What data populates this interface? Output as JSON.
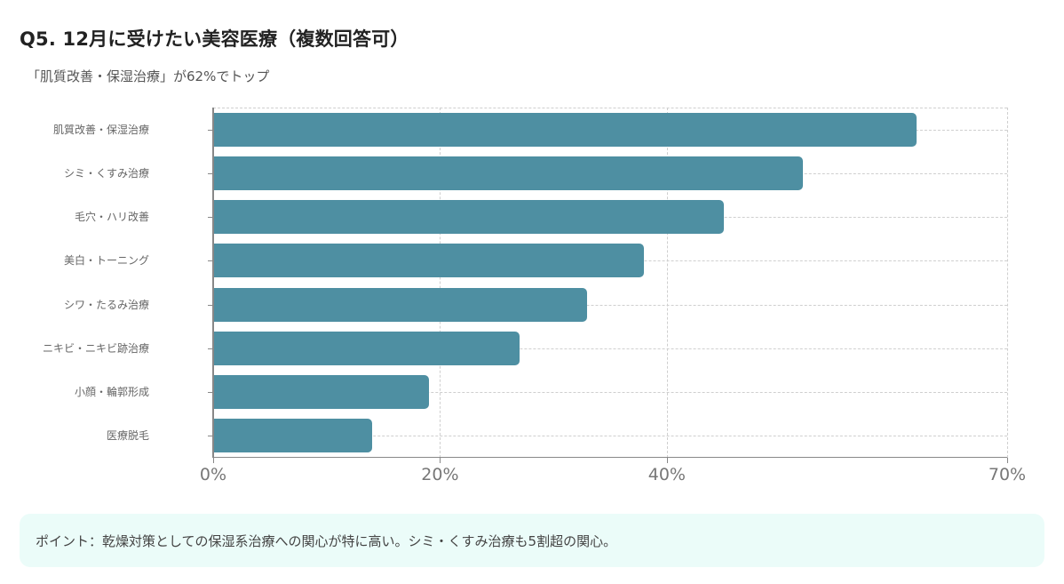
{
  "header": {
    "title": "Q5. 12月に受けたい美容医療（複数回答可）",
    "subtitle": "「肌質改善・保湿治療」が62%でトップ"
  },
  "note": {
    "text": "ポイント：乾燥対策としての保湿系治療への関心が特に高い。シミ・くすみ治療も5割超の関心。"
  },
  "colors": {
    "bar": "#4e8fa2",
    "grid": "#cfcfcf",
    "axis": "#888888",
    "note_bg": "#ebfcf9"
  },
  "chart_data": {
    "type": "bar",
    "orientation": "horizontal",
    "title": "Q5. 12月に受けたい美容医療（複数回答可）",
    "subtitle": "「肌質改善・保湿治療」が62%でトップ",
    "categories": [
      "肌質改善・保湿治療",
      "シミ・くすみ治療",
      "毛穴・ハリ改善",
      "美白・トーニング",
      "シワ・たるみ治療",
      "ニキビ・ニキビ跡治療",
      "小顔・輪郭形成",
      "医療脱毛"
    ],
    "values": [
      62,
      52,
      45,
      38,
      33,
      27,
      19,
      14
    ],
    "xlabel": "",
    "ylabel": "",
    "xlim": [
      0,
      70
    ],
    "xticks": [
      0,
      20,
      40,
      70
    ],
    "xtick_labels": [
      "0%",
      "20%",
      "40%",
      "70%"
    ],
    "grid": true,
    "legend": null
  }
}
